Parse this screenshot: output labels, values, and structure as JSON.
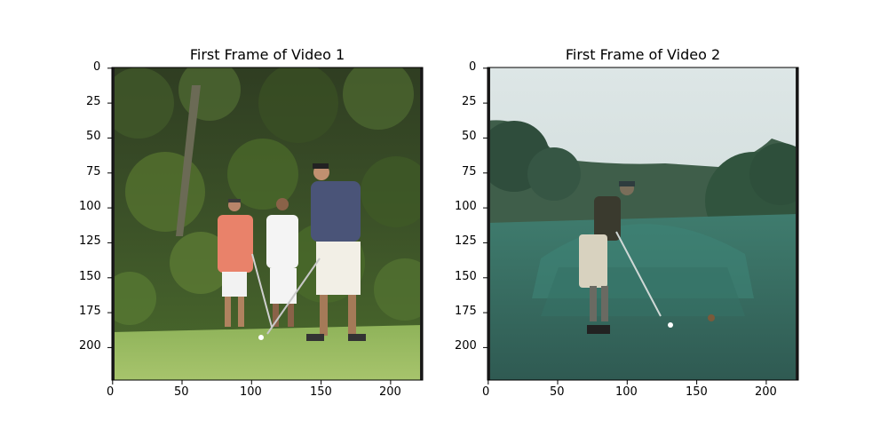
{
  "figure": {
    "panels": [
      {
        "title": "First Frame of Video 1",
        "image_kind": "golf-course-three-players-video-frame",
        "x_ticks": [
          "0",
          "50",
          "100",
          "150",
          "200"
        ],
        "y_ticks": [
          "0",
          "25",
          "50",
          "75",
          "100",
          "125",
          "150",
          "175",
          "200"
        ]
      },
      {
        "title": "First Frame of Video 2",
        "image_kind": "golfer-on-fairway-teal-tinted-video-frame",
        "x_ticks": [
          "0",
          "50",
          "100",
          "150",
          "200"
        ],
        "y_ticks": [
          "0",
          "25",
          "50",
          "75",
          "100",
          "125",
          "150",
          "175",
          "200"
        ]
      }
    ]
  }
}
